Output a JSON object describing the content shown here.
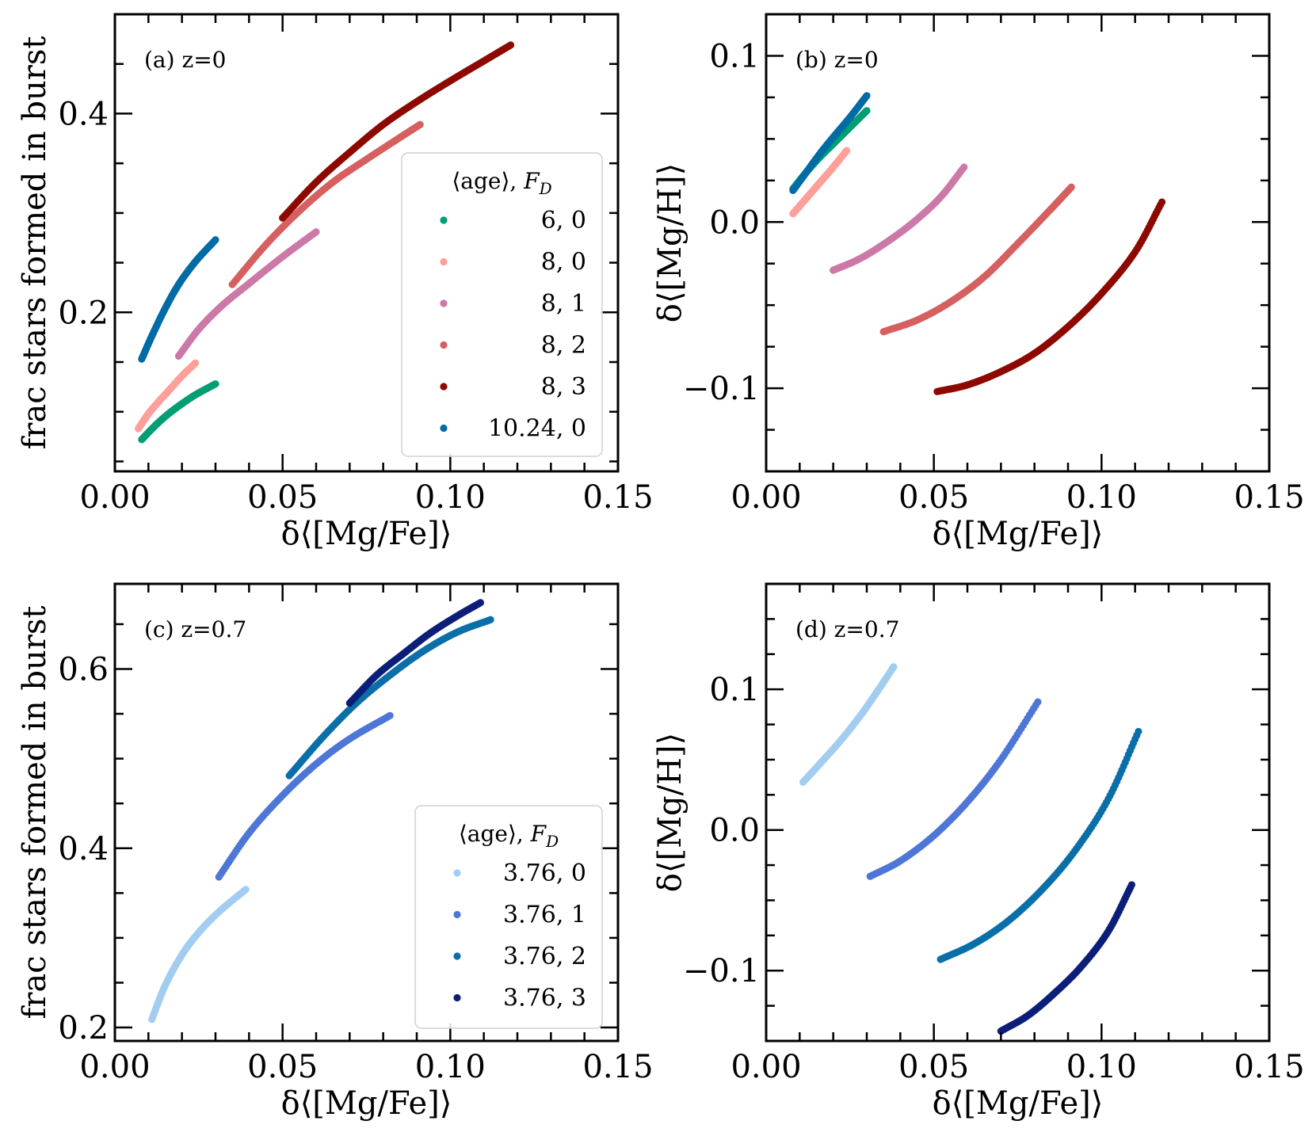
{
  "chart_data": [
    {
      "id": "a",
      "type": "scatter",
      "annotation": "(a) z=0",
      "xlabel": "δ⟨[Mg/Fe]⟩",
      "ylabel": "frac stars formed in burst",
      "xlim": [
        0.0,
        0.15
      ],
      "ylim": [
        0.04,
        0.5
      ],
      "xticks": [
        0.0,
        0.05,
        0.1,
        0.15
      ],
      "xtick_labels": [
        "0.00",
        "0.05",
        "0.10",
        "0.15"
      ],
      "yticks": [
        0.2,
        0.4
      ],
      "ytick_labels": [
        "0.2",
        "0.4"
      ],
      "grid": false,
      "legend": {
        "title": "⟨age⟩, F_D",
        "placement": "center-right"
      },
      "series": [
        {
          "name": "6, 0",
          "color": "#009e73",
          "x": [
            0.008,
            0.012,
            0.016,
            0.02,
            0.024,
            0.03
          ],
          "y": [
            0.072,
            0.086,
            0.098,
            0.108,
            0.117,
            0.128
          ]
        },
        {
          "name": "8, 0",
          "color": "#ff9f9a",
          "x": [
            0.007,
            0.01,
            0.013,
            0.016,
            0.02,
            0.024
          ],
          "y": [
            0.083,
            0.098,
            0.11,
            0.121,
            0.136,
            0.149
          ]
        },
        {
          "name": "8, 1",
          "color": "#cc79a7",
          "x": [
            0.019,
            0.025,
            0.032,
            0.04,
            0.05,
            0.06
          ],
          "y": [
            0.156,
            0.183,
            0.207,
            0.229,
            0.256,
            0.281
          ]
        },
        {
          "name": "8, 2",
          "color": "#d65f5f",
          "x": [
            0.035,
            0.045,
            0.055,
            0.065,
            0.075,
            0.085,
            0.091
          ],
          "y": [
            0.228,
            0.268,
            0.302,
            0.331,
            0.354,
            0.376,
            0.389
          ]
        },
        {
          "name": "8, 3",
          "color": "#8c0800",
          "x": [
            0.05,
            0.06,
            0.07,
            0.08,
            0.09,
            0.1,
            0.11,
            0.118
          ],
          "y": [
            0.295,
            0.331,
            0.361,
            0.389,
            0.412,
            0.433,
            0.453,
            0.469
          ]
        },
        {
          "name": "10.24, 0",
          "color": "#006ba4",
          "x": [
            0.008,
            0.011,
            0.015,
            0.019,
            0.024,
            0.03
          ],
          "y": [
            0.153,
            0.176,
            0.204,
            0.228,
            0.251,
            0.273
          ]
        }
      ]
    },
    {
      "id": "b",
      "type": "scatter",
      "annotation": "(b) z=0",
      "xlabel": "δ⟨[Mg/Fe]⟩",
      "ylabel": "δ⟨[Mg/H]⟩",
      "xlim": [
        0.0,
        0.15
      ],
      "ylim": [
        -0.15,
        0.125
      ],
      "xticks": [
        0.0,
        0.05,
        0.1,
        0.15
      ],
      "xtick_labels": [
        "0.00",
        "0.05",
        "0.10",
        "0.15"
      ],
      "yticks": [
        -0.1,
        0.0,
        0.1
      ],
      "ytick_labels": [
        "−0.1",
        "0.0",
        "0.1"
      ],
      "grid": false,
      "series": [
        {
          "name": "6, 0",
          "color": "#009e73",
          "x": [
            0.008,
            0.012,
            0.016,
            0.02,
            0.025,
            0.03
          ],
          "y": [
            0.02,
            0.03,
            0.039,
            0.047,
            0.057,
            0.067
          ]
        },
        {
          "name": "8, 0",
          "color": "#ff9f9a",
          "x": [
            0.008,
            0.011,
            0.014,
            0.017,
            0.02,
            0.024
          ],
          "y": [
            0.005,
            0.012,
            0.019,
            0.026,
            0.033,
            0.043
          ]
        },
        {
          "name": "8, 1",
          "color": "#cc79a7",
          "x": [
            0.02,
            0.028,
            0.036,
            0.044,
            0.052,
            0.059
          ],
          "y": [
            -0.029,
            -0.022,
            -0.012,
            0.0,
            0.015,
            0.033
          ]
        },
        {
          "name": "8, 2",
          "color": "#d65f5f",
          "x": [
            0.035,
            0.045,
            0.055,
            0.065,
            0.075,
            0.085,
            0.091
          ],
          "y": [
            -0.066,
            -0.059,
            -0.048,
            -0.033,
            -0.013,
            0.008,
            0.021
          ]
        },
        {
          "name": "8, 3",
          "color": "#8c0800",
          "x": [
            0.051,
            0.06,
            0.07,
            0.08,
            0.09,
            0.1,
            0.11,
            0.118
          ],
          "y": [
            -0.102,
            -0.098,
            -0.09,
            -0.079,
            -0.063,
            -0.043,
            -0.018,
            0.012
          ]
        },
        {
          "name": "10.24, 0",
          "color": "#006ba4",
          "x": [
            0.008,
            0.012,
            0.016,
            0.02,
            0.025,
            0.03
          ],
          "y": [
            0.019,
            0.03,
            0.041,
            0.051,
            0.063,
            0.076
          ]
        }
      ]
    },
    {
      "id": "c",
      "type": "scatter",
      "annotation": "(c) z=0.7",
      "xlabel": "δ⟨[Mg/Fe]⟩",
      "ylabel": "frac stars formed in burst",
      "xlim": [
        0.0,
        0.15
      ],
      "ylim": [
        0.185,
        0.695
      ],
      "xticks": [
        0.0,
        0.05,
        0.1,
        0.15
      ],
      "xtick_labels": [
        "0.00",
        "0.05",
        "0.10",
        "0.15"
      ],
      "yticks": [
        0.2,
        0.4,
        0.6
      ],
      "ytick_labels": [
        "0.2",
        "0.4",
        "0.6"
      ],
      "grid": false,
      "legend": {
        "title": "⟨age⟩, F_D",
        "placement": "lower-right"
      },
      "series": [
        {
          "name": "3.76, 0",
          "color": "#a3cdf0",
          "x": [
            0.011,
            0.015,
            0.02,
            0.025,
            0.031,
            0.039
          ],
          "y": [
            0.209,
            0.247,
            0.281,
            0.306,
            0.329,
            0.354
          ]
        },
        {
          "name": "3.76, 1",
          "color": "#4e76d6",
          "x": [
            0.031,
            0.04,
            0.05,
            0.06,
            0.07,
            0.082
          ],
          "y": [
            0.368,
            0.417,
            0.459,
            0.494,
            0.522,
            0.548
          ]
        },
        {
          "name": "3.76, 2",
          "color": "#0a6fa8",
          "x": [
            0.052,
            0.062,
            0.072,
            0.082,
            0.092,
            0.102,
            0.112
          ],
          "y": [
            0.481,
            0.524,
            0.562,
            0.593,
            0.62,
            0.641,
            0.655
          ]
        },
        {
          "name": "3.76, 3",
          "color": "#0b1f78",
          "x": [
            0.07,
            0.078,
            0.086,
            0.094,
            0.102,
            0.109
          ],
          "y": [
            0.562,
            0.593,
            0.617,
            0.64,
            0.659,
            0.674
          ]
        }
      ]
    },
    {
      "id": "d",
      "type": "scatter",
      "annotation": "(d) z=0.7",
      "xlabel": "δ⟨[Mg/Fe]⟩",
      "ylabel": "δ⟨[Mg/H]⟩",
      "xlim": [
        0.0,
        0.15
      ],
      "ylim": [
        -0.15,
        0.175
      ],
      "xticks": [
        0.0,
        0.05,
        0.1,
        0.15
      ],
      "xtick_labels": [
        "0.00",
        "0.05",
        "0.10",
        "0.15"
      ],
      "yticks": [
        -0.1,
        0.0,
        0.1
      ],
      "ytick_labels": [
        "−0.1",
        "0.0",
        "0.1"
      ],
      "grid": false,
      "series": [
        {
          "name": "3.76, 0",
          "color": "#a3cdf0",
          "x": [
            0.011,
            0.016,
            0.022,
            0.028,
            0.033,
            0.038
          ],
          "y": [
            0.034,
            0.047,
            0.063,
            0.081,
            0.098,
            0.116
          ]
        },
        {
          "name": "3.76, 1",
          "color": "#4e76d6",
          "x": [
            0.031,
            0.04,
            0.05,
            0.06,
            0.07,
            0.081
          ],
          "y": [
            -0.033,
            -0.022,
            -0.004,
            0.02,
            0.05,
            0.091
          ]
        },
        {
          "name": "3.76, 2",
          "color": "#0a6fa8",
          "x": [
            0.052,
            0.062,
            0.072,
            0.082,
            0.092,
            0.102,
            0.111
          ],
          "y": [
            -0.092,
            -0.081,
            -0.065,
            -0.043,
            -0.015,
            0.022,
            0.07
          ]
        },
        {
          "name": "3.76, 3",
          "color": "#0b1f78",
          "x": [
            0.07,
            0.078,
            0.086,
            0.094,
            0.102,
            0.109
          ],
          "y": [
            -0.143,
            -0.132,
            -0.116,
            -0.097,
            -0.072,
            -0.039
          ]
        }
      ]
    }
  ]
}
